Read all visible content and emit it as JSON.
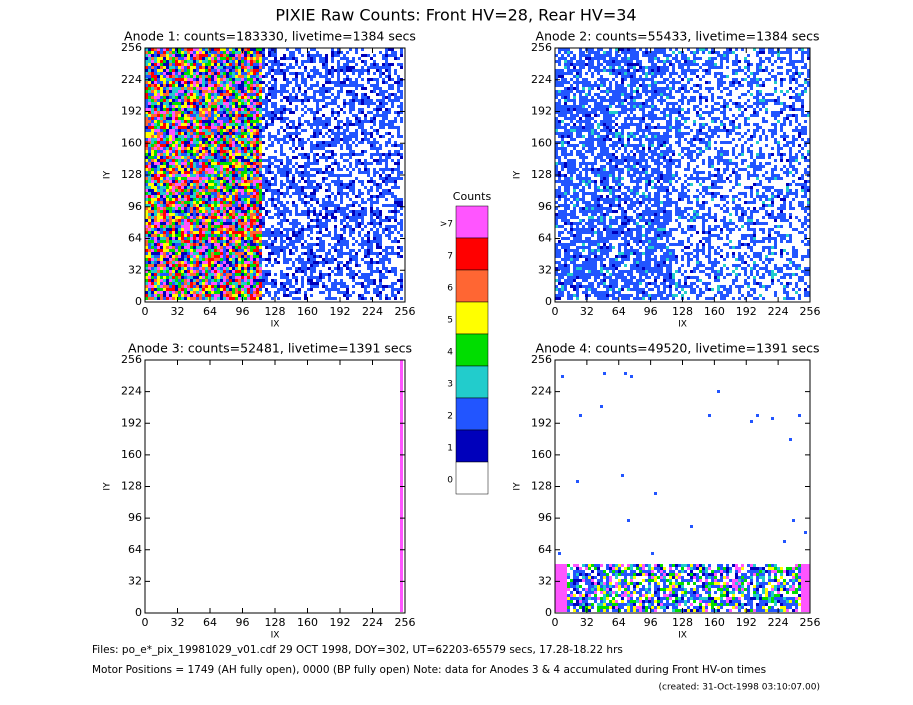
{
  "title": "PIXIE Raw Counts:  Front HV=28, Rear HV=34",
  "chart_data": [
    {
      "type": "heatmap",
      "title": "Anode 1: counts=183330, livetime=1384 secs",
      "xlabel": "IX",
      "ylabel": "IY",
      "xlim": [
        0,
        256
      ],
      "ylim": [
        0,
        256
      ],
      "xticks": [
        0,
        32,
        64,
        96,
        128,
        160,
        192,
        224,
        256
      ],
      "yticks": [
        0,
        32,
        64,
        96,
        128,
        160,
        192,
        224,
        256
      ]
    },
    {
      "type": "heatmap",
      "title": "Anode 2: counts=55433, livetime=1384 secs",
      "xlabel": "IX",
      "ylabel": "IY",
      "xlim": [
        0,
        256
      ],
      "ylim": [
        0,
        256
      ],
      "xticks": [
        0,
        32,
        64,
        96,
        128,
        160,
        192,
        224,
        256
      ],
      "yticks": [
        0,
        32,
        64,
        96,
        128,
        160,
        192,
        224,
        256
      ]
    },
    {
      "type": "heatmap",
      "title": "Anode 3: counts=52481, livetime=1391 secs",
      "xlabel": "IX",
      "ylabel": "IY",
      "xlim": [
        0,
        256
      ],
      "ylim": [
        0,
        256
      ],
      "xticks": [
        0,
        32,
        64,
        96,
        128,
        160,
        192,
        224,
        256
      ],
      "yticks": [
        0,
        32,
        64,
        96,
        128,
        160,
        192,
        224,
        256
      ]
    },
    {
      "type": "heatmap",
      "title": "Anode 4: counts=49520, livetime=1391 secs",
      "xlabel": "IX",
      "ylabel": "IY",
      "xlim": [
        0,
        256
      ],
      "ylim": [
        0,
        256
      ],
      "xticks": [
        0,
        32,
        64,
        96,
        128,
        160,
        192,
        224,
        256
      ],
      "yticks": [
        0,
        32,
        64,
        96,
        128,
        160,
        192,
        224,
        256
      ]
    }
  ],
  "colorbar": {
    "title": "Counts",
    "levels": [
      {
        "label": ">7",
        "color": "#ff55ff"
      },
      {
        "label": "7",
        "color": "#ff0000"
      },
      {
        "label": "6",
        "color": "#ff6633"
      },
      {
        "label": "5",
        "color": "#ffff00"
      },
      {
        "label": "4",
        "color": "#00dd00"
      },
      {
        "label": "3",
        "color": "#22cccc"
      },
      {
        "label": "2",
        "color": "#2255ff"
      },
      {
        "label": "1",
        "color": "#0000bb"
      },
      {
        "label": "0",
        "color": "#ffffff"
      }
    ]
  },
  "footer": {
    "files": "Files: po_e*_pix_19981029_v01.cdf    29 OCT 1998, DOY=302, UT=62203-65579 secs, 17.28-18.22 hrs",
    "motor": "Motor Positions = 1749 (AH fully open), 0000 (BP fully open)    Note: data for Anodes 3 & 4 accumulated during Front HV-on times",
    "created": "(created: 31-Oct-1998 03:10:07.00)"
  }
}
